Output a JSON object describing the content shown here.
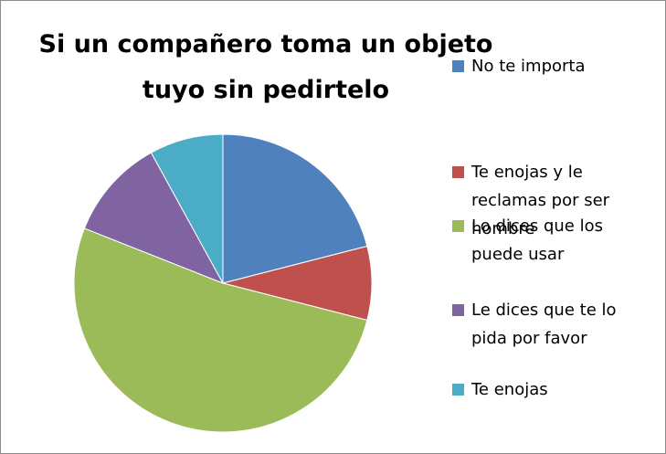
{
  "chart_data": {
    "type": "pie",
    "title": "Si un compañero toma un objeto tuyo sin pedirtelo",
    "categories": [
      "No te importa",
      "Te enojas y le reclamas por ser hombre",
      "Lo dices que los puede usar",
      "Le dices que te lo pida por favor",
      "Te enojas"
    ],
    "values": [
      21,
      8,
      52,
      11,
      8
    ],
    "colors": [
      "#4f81bd",
      "#c0504d",
      "#9bbb59",
      "#8064a2",
      "#4bacc6"
    ],
    "legend": "right"
  }
}
